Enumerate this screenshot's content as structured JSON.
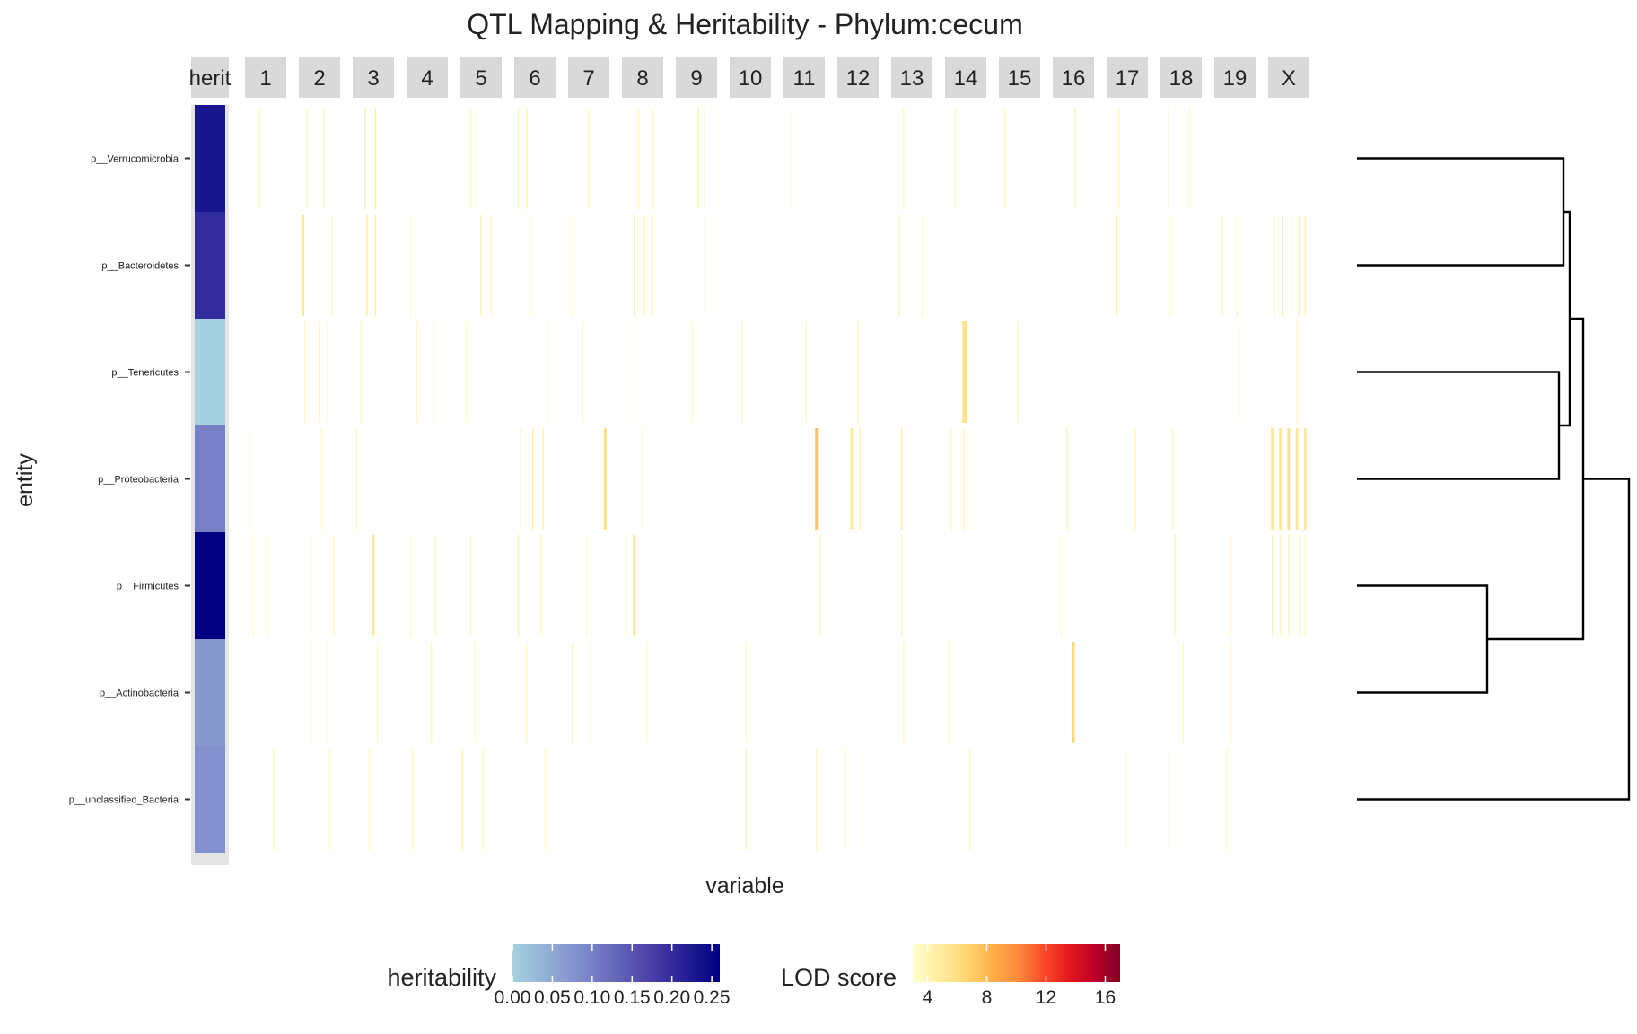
{
  "chart_data": {
    "type": "heatmap",
    "title": "QTL Mapping & Heritability - Phylum:cecum",
    "xlabel": "variable",
    "ylabel": "entity",
    "panels": [
      "herit",
      "1",
      "2",
      "3",
      "4",
      "5",
      "6",
      "7",
      "8",
      "9",
      "10",
      "11",
      "12",
      "13",
      "14",
      "15",
      "16",
      "17",
      "18",
      "19",
      "X"
    ],
    "entities": [
      "p__Verrucomicrobia",
      "p__Bacteroidetes",
      "p__Tenericutes",
      "p__Proteobacteria",
      "p__Firmicutes",
      "p__Actinobacteria",
      "p__unclassified_Bacteria"
    ],
    "heritability": {
      "p__Verrucomicrobia": 0.23,
      "p__Bacteroidetes": 0.2,
      "p__Tenericutes": 0.0,
      "p__Proteobacteria": 0.1,
      "p__Firmicutes": 0.26,
      "p__Actinobacteria": 0.07,
      "p__unclassified_Bacteria": 0.08
    },
    "lod_hits": [
      {
        "entity": "p__Verrucomicrobia",
        "panel": "1",
        "pos": 0.35,
        "lod": 3.5
      },
      {
        "entity": "p__Verrucomicrobia",
        "panel": "2",
        "pos": 0.2,
        "lod": 3.6
      },
      {
        "entity": "p__Verrucomicrobia",
        "panel": "2",
        "pos": 0.6,
        "lod": 3.4
      },
      {
        "entity": "p__Verrucomicrobia",
        "panel": "3",
        "pos": 0.3,
        "lod": 4.2
      },
      {
        "entity": "p__Verrucomicrobia",
        "panel": "3",
        "pos": 0.55,
        "lod": 4.5
      },
      {
        "entity": "p__Verrucomicrobia",
        "panel": "5",
        "pos": 0.25,
        "lod": 3.8
      },
      {
        "entity": "p__Verrucomicrobia",
        "panel": "5",
        "pos": 0.4,
        "lod": 3.5
      },
      {
        "entity": "p__Verrucomicrobia",
        "panel": "6",
        "pos": 0.1,
        "lod": 4.0
      },
      {
        "entity": "p__Verrucomicrobia",
        "panel": "6",
        "pos": 0.3,
        "lod": 4.4
      },
      {
        "entity": "p__Verrucomicrobia",
        "panel": "7",
        "pos": 0.5,
        "lod": 3.6
      },
      {
        "entity": "p__Verrucomicrobia",
        "panel": "8",
        "pos": 0.4,
        "lod": 3.7
      },
      {
        "entity": "p__Verrucomicrobia",
        "panel": "8",
        "pos": 0.75,
        "lod": 3.5
      },
      {
        "entity": "p__Verrucomicrobia",
        "panel": "9",
        "pos": 0.55,
        "lod": 4.1
      },
      {
        "entity": "p__Verrucomicrobia",
        "panel": "9",
        "pos": 0.7,
        "lod": 3.9
      },
      {
        "entity": "p__Verrucomicrobia",
        "panel": "11",
        "pos": 0.2,
        "lod": 3.4
      },
      {
        "entity": "p__Verrucomicrobia",
        "panel": "13",
        "pos": 0.3,
        "lod": 3.6
      },
      {
        "entity": "p__Verrucomicrobia",
        "panel": "14",
        "pos": 0.25,
        "lod": 3.8
      },
      {
        "entity": "p__Verrucomicrobia",
        "panel": "15",
        "pos": 0.15,
        "lod": 3.5
      },
      {
        "entity": "p__Verrucomicrobia",
        "panel": "16",
        "pos": 0.55,
        "lod": 3.9
      },
      {
        "entity": "p__Verrucomicrobia",
        "panel": "17",
        "pos": 0.3,
        "lod": 3.5
      },
      {
        "entity": "p__Verrucomicrobia",
        "panel": "18",
        "pos": 0.2,
        "lod": 4.1
      },
      {
        "entity": "p__Verrucomicrobia",
        "panel": "18",
        "pos": 0.7,
        "lod": 3.5
      },
      {
        "entity": "p__Bacteroidetes",
        "panel": "2",
        "pos": 0.1,
        "lod": 5.2
      },
      {
        "entity": "p__Bacteroidetes",
        "panel": "2",
        "pos": 0.8,
        "lod": 3.6
      },
      {
        "entity": "p__Bacteroidetes",
        "panel": "3",
        "pos": 0.35,
        "lod": 4.8
      },
      {
        "entity": "p__Bacteroidetes",
        "panel": "3",
        "pos": 0.55,
        "lod": 4.5
      },
      {
        "entity": "p__Bacteroidetes",
        "panel": "4",
        "pos": 0.1,
        "lod": 3.5
      },
      {
        "entity": "p__Bacteroidetes",
        "panel": "5",
        "pos": 0.5,
        "lod": 4.4
      },
      {
        "entity": "p__Bacteroidetes",
        "panel": "5",
        "pos": 0.75,
        "lod": 3.8
      },
      {
        "entity": "p__Bacteroidetes",
        "panel": "6",
        "pos": 0.4,
        "lod": 3.5
      },
      {
        "entity": "p__Bacteroidetes",
        "panel": "7",
        "pos": 0.1,
        "lod": 3.4
      },
      {
        "entity": "p__Bacteroidetes",
        "panel": "8",
        "pos": 0.3,
        "lod": 4.6
      },
      {
        "entity": "p__Bacteroidetes",
        "panel": "8",
        "pos": 0.55,
        "lod": 4.0
      },
      {
        "entity": "p__Bacteroidetes",
        "panel": "8",
        "pos": 0.75,
        "lod": 3.8
      },
      {
        "entity": "p__Bacteroidetes",
        "panel": "9",
        "pos": 0.7,
        "lod": 3.5
      },
      {
        "entity": "p__Bacteroidetes",
        "panel": "13",
        "pos": 0.2,
        "lod": 4.0
      },
      {
        "entity": "p__Bacteroidetes",
        "panel": "13",
        "pos": 0.75,
        "lod": 3.5
      },
      {
        "entity": "p__Bacteroidetes",
        "panel": "17",
        "pos": 0.25,
        "lod": 4.2
      },
      {
        "entity": "p__Bacteroidetes",
        "panel": "18",
        "pos": 0.25,
        "lod": 3.4
      },
      {
        "entity": "p__Bacteroidetes",
        "panel": "19",
        "pos": 0.2,
        "lod": 3.5
      },
      {
        "entity": "p__Bacteroidetes",
        "panel": "19",
        "pos": 0.55,
        "lod": 3.6
      },
      {
        "entity": "p__Bacteroidetes",
        "panel": "X",
        "pos": 0.15,
        "lod": 4.5
      },
      {
        "entity": "p__Bacteroidetes",
        "panel": "X",
        "pos": 0.35,
        "lod": 4.8
      },
      {
        "entity": "p__Bacteroidetes",
        "panel": "X",
        "pos": 0.55,
        "lod": 4.6
      },
      {
        "entity": "p__Bacteroidetes",
        "panel": "X",
        "pos": 0.75,
        "lod": 4.4
      },
      {
        "entity": "p__Bacteroidetes",
        "panel": "X",
        "pos": 0.9,
        "lod": 4.2
      },
      {
        "entity": "p__Tenericutes",
        "panel": "2",
        "pos": 0.15,
        "lod": 3.6
      },
      {
        "entity": "p__Tenericutes",
        "panel": "2",
        "pos": 0.5,
        "lod": 4.2
      },
      {
        "entity": "p__Tenericutes",
        "panel": "2",
        "pos": 0.7,
        "lod": 4.0
      },
      {
        "entity": "p__Tenericutes",
        "panel": "3",
        "pos": 0.2,
        "lod": 3.5
      },
      {
        "entity": "p__Tenericutes",
        "panel": "4",
        "pos": 0.25,
        "lod": 3.8
      },
      {
        "entity": "p__Tenericutes",
        "panel": "4",
        "pos": 0.65,
        "lod": 3.5
      },
      {
        "entity": "p__Tenericutes",
        "panel": "5",
        "pos": 0.15,
        "lod": 3.6
      },
      {
        "entity": "p__Tenericutes",
        "panel": "6",
        "pos": 0.8,
        "lod": 3.7
      },
      {
        "entity": "p__Tenericutes",
        "panel": "7",
        "pos": 0.35,
        "lod": 4.1
      },
      {
        "entity": "p__Tenericutes",
        "panel": "8",
        "pos": 0.1,
        "lod": 3.4
      },
      {
        "entity": "p__Tenericutes",
        "panel": "9",
        "pos": 0.4,
        "lod": 3.6
      },
      {
        "entity": "p__Tenericutes",
        "panel": "10",
        "pos": 0.3,
        "lod": 3.5
      },
      {
        "entity": "p__Tenericutes",
        "panel": "11",
        "pos": 0.55,
        "lod": 3.5
      },
      {
        "entity": "p__Tenericutes",
        "panel": "12",
        "pos": 0.5,
        "lod": 3.8
      },
      {
        "entity": "p__Tenericutes",
        "panel": "14",
        "pos": 0.5,
        "lod": 6.2
      },
      {
        "entity": "p__Tenericutes",
        "panel": "14",
        "pos": 0.45,
        "lod": 5.5
      },
      {
        "entity": "p__Tenericutes",
        "panel": "15",
        "pos": 0.45,
        "lod": 3.6
      },
      {
        "entity": "p__Tenericutes",
        "panel": "19",
        "pos": 0.6,
        "lod": 3.5
      },
      {
        "entity": "p__Tenericutes",
        "panel": "X",
        "pos": 0.7,
        "lod": 3.5
      },
      {
        "entity": "p__Proteobacteria",
        "panel": "herit",
        "pos": 0.0,
        "lod": 0.0
      },
      {
        "entity": "p__Proteobacteria",
        "panel": "1",
        "pos": 0.1,
        "lod": 3.5
      },
      {
        "entity": "p__Proteobacteria",
        "panel": "2",
        "pos": 0.55,
        "lod": 3.4
      },
      {
        "entity": "p__Proteobacteria",
        "panel": "3",
        "pos": 0.1,
        "lod": 3.5
      },
      {
        "entity": "p__Proteobacteria",
        "panel": "6",
        "pos": 0.15,
        "lod": 3.6
      },
      {
        "entity": "p__Proteobacteria",
        "panel": "6",
        "pos": 0.45,
        "lod": 4.5
      },
      {
        "entity": "p__Proteobacteria",
        "panel": "6",
        "pos": 0.7,
        "lod": 4.2
      },
      {
        "entity": "p__Proteobacteria",
        "panel": "7",
        "pos": 0.9,
        "lod": 6.0
      },
      {
        "entity": "p__Proteobacteria",
        "panel": "8",
        "pos": 0.5,
        "lod": 3.5
      },
      {
        "entity": "p__Proteobacteria",
        "panel": "11",
        "pos": 0.8,
        "lod": 7.5
      },
      {
        "entity": "p__Proteobacteria",
        "panel": "12",
        "pos": 0.35,
        "lod": 5.0
      },
      {
        "entity": "p__Proteobacteria",
        "panel": "12",
        "pos": 0.55,
        "lod": 4.4
      },
      {
        "entity": "p__Proteobacteria",
        "panel": "13",
        "pos": 0.25,
        "lod": 4.8
      },
      {
        "entity": "p__Proteobacteria",
        "panel": "14",
        "pos": 0.15,
        "lod": 3.6
      },
      {
        "entity": "p__Proteobacteria",
        "panel": "14",
        "pos": 0.45,
        "lod": 4.0
      },
      {
        "entity": "p__Proteobacteria",
        "panel": "16",
        "pos": 0.35,
        "lod": 4.2
      },
      {
        "entity": "p__Proteobacteria",
        "panel": "17",
        "pos": 0.7,
        "lod": 3.8
      },
      {
        "entity": "p__Proteobacteria",
        "panel": "18",
        "pos": 0.3,
        "lod": 3.5
      },
      {
        "entity": "p__Proteobacteria",
        "panel": "X",
        "pos": 0.1,
        "lod": 5.0
      },
      {
        "entity": "p__Proteobacteria",
        "panel": "X",
        "pos": 0.3,
        "lod": 5.4
      },
      {
        "entity": "p__Proteobacteria",
        "panel": "X",
        "pos": 0.5,
        "lod": 5.6
      },
      {
        "entity": "p__Proteobacteria",
        "panel": "X",
        "pos": 0.7,
        "lod": 5.2
      },
      {
        "entity": "p__Proteobacteria",
        "panel": "X",
        "pos": 0.9,
        "lod": 5.0
      },
      {
        "entity": "p__Firmicutes",
        "panel": "1",
        "pos": 0.2,
        "lod": 3.6
      },
      {
        "entity": "p__Firmicutes",
        "panel": "1",
        "pos": 0.55,
        "lod": 3.5
      },
      {
        "entity": "p__Firmicutes",
        "panel": "2",
        "pos": 0.3,
        "lod": 3.6
      },
      {
        "entity": "p__Firmicutes",
        "panel": "2",
        "pos": 0.85,
        "lod": 3.5
      },
      {
        "entity": "p__Firmicutes",
        "panel": "3",
        "pos": 0.5,
        "lod": 5.2
      },
      {
        "entity": "p__Firmicutes",
        "panel": "4",
        "pos": 0.1,
        "lod": 3.6
      },
      {
        "entity": "p__Firmicutes",
        "panel": "4",
        "pos": 0.7,
        "lod": 3.5
      },
      {
        "entity": "p__Firmicutes",
        "panel": "5",
        "pos": 0.25,
        "lod": 3.6
      },
      {
        "entity": "p__Firmicutes",
        "panel": "6",
        "pos": 0.1,
        "lod": 4.6
      },
      {
        "entity": "p__Firmicutes",
        "panel": "6",
        "pos": 0.65,
        "lod": 3.6
      },
      {
        "entity": "p__Firmicutes",
        "panel": "7",
        "pos": 0.45,
        "lod": 3.5
      },
      {
        "entity": "p__Firmicutes",
        "panel": "8",
        "pos": 0.1,
        "lod": 4.2
      },
      {
        "entity": "p__Firmicutes",
        "panel": "8",
        "pos": 0.1,
        "lod": 4.2
      },
      {
        "entity": "p__Firmicutes",
        "panel": "8",
        "pos": 0.3,
        "lod": 5.2
      },
      {
        "entity": "p__Firmicutes",
        "panel": "11",
        "pos": 0.9,
        "lod": 3.5
      },
      {
        "entity": "p__Firmicutes",
        "panel": "13",
        "pos": 0.25,
        "lod": 3.8
      },
      {
        "entity": "p__Firmicutes",
        "panel": "16",
        "pos": 0.2,
        "lod": 3.6
      },
      {
        "entity": "p__Firmicutes",
        "panel": "18",
        "pos": 0.35,
        "lod": 4.0
      },
      {
        "entity": "p__Firmicutes",
        "panel": "19",
        "pos": 0.4,
        "lod": 3.6
      },
      {
        "entity": "p__Firmicutes",
        "panel": "X",
        "pos": 0.1,
        "lod": 4.2
      },
      {
        "entity": "p__Firmicutes",
        "panel": "X",
        "pos": 0.3,
        "lod": 4.0
      },
      {
        "entity": "p__Firmicutes",
        "panel": "X",
        "pos": 0.5,
        "lod": 4.0
      },
      {
        "entity": "p__Firmicutes",
        "panel": "X",
        "pos": 0.75,
        "lod": 3.8
      },
      {
        "entity": "p__Firmicutes",
        "panel": "X",
        "pos": 0.9,
        "lod": 3.6
      },
      {
        "entity": "p__Actinobacteria",
        "panel": "2",
        "pos": 0.3,
        "lod": 3.8
      },
      {
        "entity": "p__Actinobacteria",
        "panel": "2",
        "pos": 0.7,
        "lod": 3.5
      },
      {
        "entity": "p__Actinobacteria",
        "panel": "3",
        "pos": 0.6,
        "lod": 3.6
      },
      {
        "entity": "p__Actinobacteria",
        "panel": "4",
        "pos": 0.6,
        "lod": 3.8
      },
      {
        "entity": "p__Actinobacteria",
        "panel": "5",
        "pos": 0.35,
        "lod": 3.5
      },
      {
        "entity": "p__Actinobacteria",
        "panel": "6",
        "pos": 0.3,
        "lod": 3.5
      },
      {
        "entity": "p__Actinobacteria",
        "panel": "7",
        "pos": 0.1,
        "lod": 4.0
      },
      {
        "entity": "p__Actinobacteria",
        "panel": "7",
        "pos": 0.55,
        "lod": 4.4
      },
      {
        "entity": "p__Actinobacteria",
        "panel": "8",
        "pos": 0.6,
        "lod": 3.5
      },
      {
        "entity": "p__Actinobacteria",
        "panel": "10",
        "pos": 0.4,
        "lod": 3.4
      },
      {
        "entity": "p__Actinobacteria",
        "panel": "13",
        "pos": 0.3,
        "lod": 3.5
      },
      {
        "entity": "p__Actinobacteria",
        "panel": "14",
        "pos": 0.1,
        "lod": 3.6
      },
      {
        "entity": "p__Actinobacteria",
        "panel": "16",
        "pos": 0.5,
        "lod": 6.5
      },
      {
        "entity": "p__Actinobacteria",
        "panel": "18",
        "pos": 0.55,
        "lod": 3.5
      },
      {
        "entity": "p__Actinobacteria",
        "panel": "19",
        "pos": 0.4,
        "lod": 3.4
      },
      {
        "entity": "p__unclassified_Bacteria",
        "panel": "1",
        "pos": 0.7,
        "lod": 3.8
      },
      {
        "entity": "p__unclassified_Bacteria",
        "panel": "2",
        "pos": 0.75,
        "lod": 3.5
      },
      {
        "entity": "p__unclassified_Bacteria",
        "panel": "3",
        "pos": 0.4,
        "lod": 3.6
      },
      {
        "entity": "p__unclassified_Bacteria",
        "panel": "4",
        "pos": 0.15,
        "lod": 3.5
      },
      {
        "entity": "p__unclassified_Bacteria",
        "panel": "5",
        "pos": 0.05,
        "lod": 4.2
      },
      {
        "entity": "p__unclassified_Bacteria",
        "panel": "5",
        "pos": 0.55,
        "lod": 3.5
      },
      {
        "entity": "p__unclassified_Bacteria",
        "panel": "6",
        "pos": 0.75,
        "lod": 3.5
      },
      {
        "entity": "p__unclassified_Bacteria",
        "panel": "10",
        "pos": 0.4,
        "lod": 4.0
      },
      {
        "entity": "p__unclassified_Bacteria",
        "panel": "11",
        "pos": 0.8,
        "lod": 3.6
      },
      {
        "entity": "p__unclassified_Bacteria",
        "panel": "12",
        "pos": 0.2,
        "lod": 3.5
      },
      {
        "entity": "p__unclassified_Bacteria",
        "panel": "12",
        "pos": 0.6,
        "lod": 3.6
      },
      {
        "entity": "p__unclassified_Bacteria",
        "panel": "14",
        "pos": 0.6,
        "lod": 3.8
      },
      {
        "entity": "p__unclassified_Bacteria",
        "panel": "17",
        "pos": 0.45,
        "lod": 4.2
      },
      {
        "entity": "p__unclassified_Bacteria",
        "panel": "18",
        "pos": 0.2,
        "lod": 3.6
      },
      {
        "entity": "p__unclassified_Bacteria",
        "panel": "19",
        "pos": 0.3,
        "lod": 3.5
      }
    ],
    "legend": {
      "position": "bottom",
      "heritability": {
        "title": "heritability",
        "range": [
          0,
          0.26
        ],
        "ticks": [
          "0.00",
          "0.05",
          "0.10",
          "0.15",
          "0.20",
          "0.25"
        ],
        "tick_values": [
          0.0,
          0.05,
          0.1,
          0.15,
          0.2,
          0.25
        ],
        "low_color": "#a5d1e0",
        "high_color": "#000080"
      },
      "lod": {
        "title": "LOD score",
        "range": [
          3,
          17
        ],
        "ticks": [
          "4",
          "8",
          "12",
          "16"
        ],
        "tick_values": [
          4,
          8,
          12,
          16
        ],
        "colors": [
          "#ffffcc",
          "#ffeda0",
          "#fed976",
          "#feb24c",
          "#fd8d3c",
          "#fc4e2a",
          "#e31a1c",
          "#bd0026",
          "#800026"
        ]
      }
    },
    "dendrogram": {
      "position": "right",
      "merges": [
        {
          "a": "p__Verrucomicrobia",
          "b": "p__Bacteroidetes",
          "height": 0.22
        },
        {
          "a": "p__Tenericutes",
          "b": "p__Proteobacteria",
          "height": 0.24
        },
        {
          "a": "group1",
          "b": "group2",
          "height": 0.21
        },
        {
          "a": "p__Firmicutes",
          "b": "p__Actinobacteria",
          "height": 0.5
        },
        {
          "a": "group3",
          "b": "group4",
          "height": 0.17
        },
        {
          "a": "group5",
          "b": "p__unclassified_Bacteria",
          "height": 0.0
        }
      ]
    },
    "grid": false
  }
}
